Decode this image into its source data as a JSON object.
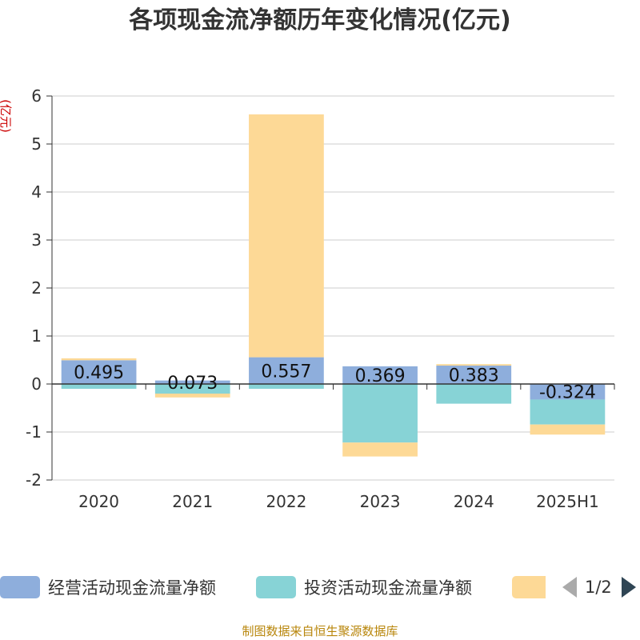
{
  "chart_data": {
    "type": "bar",
    "stacked": true,
    "title": "各项现金流净额历年变化情况(亿元)",
    "ylabel": "(亿元)",
    "xlabel": "",
    "categories": [
      "2020",
      "2021",
      "2022",
      "2023",
      "2024",
      "2025H1"
    ],
    "ylim": [
      -2,
      6
    ],
    "yticks": [
      -2,
      -1,
      0,
      1,
      2,
      3,
      4,
      5,
      6
    ],
    "grid": true,
    "legend_position": "bottom",
    "series": [
      {
        "name": "经营活动现金流量净额",
        "color": "#8eaedc",
        "values": [
          0.495,
          0.073,
          0.557,
          0.369,
          0.383,
          -0.324
        ]
      },
      {
        "name": "投资活动现金流量净额",
        "color": "#87d3d6",
        "values": [
          -0.1,
          -0.2,
          -0.1,
          -1.22,
          -0.41,
          -0.52
        ]
      },
      {
        "name": "",
        "color": "#fdd996",
        "values": [
          0.04,
          -0.08,
          5.06,
          -0.29,
          0.03,
          -0.21
        ]
      }
    ],
    "data_labels": [
      "0.495",
      "0.073",
      "0.557",
      "0.369",
      "0.383",
      "-0.324"
    ]
  },
  "legend": {
    "page_indicator": "1/2"
  },
  "source": "制图数据来自恒生聚源数据库"
}
